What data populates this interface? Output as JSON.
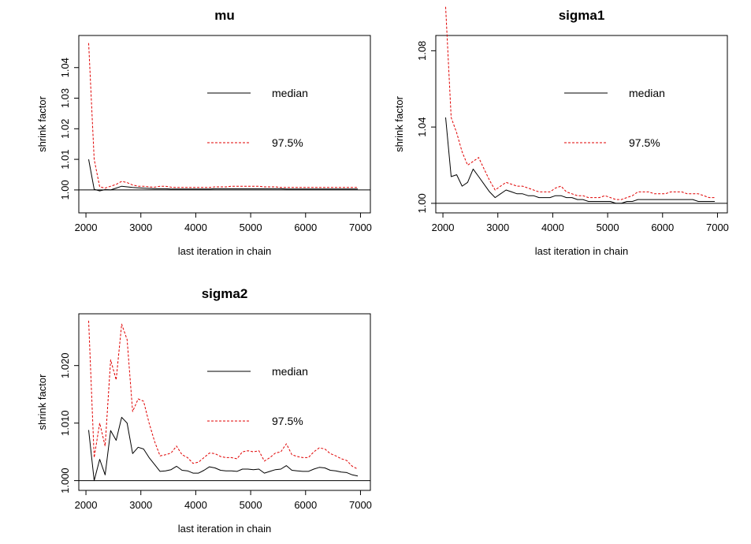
{
  "colors": {
    "median": "#000000",
    "q975": "#e00000",
    "axis": "#000000",
    "background": "#ffffff"
  },
  "chart_data": [
    {
      "type": "line",
      "title": "mu",
      "xlabel": "last iteration in chain",
      "ylabel": "shrink factor",
      "xlim": [
        1870,
        7180
      ],
      "ylim": [
        0.9925,
        1.0505
      ],
      "xticks": [
        2000,
        3000,
        4000,
        5000,
        6000,
        7000
      ],
      "xtick_labels": [
        "2000",
        "3000",
        "4000",
        "5000",
        "6000",
        "7000"
      ],
      "yticks": [
        1.0,
        1.01,
        1.02,
        1.03,
        1.04
      ],
      "ytick_labels": [
        "1.00",
        "1.01",
        "1.02",
        "1.03",
        "1.04"
      ],
      "hline": 1.0,
      "legend": {
        "position": "upper-right",
        "entries": [
          "median",
          "97.5%"
        ]
      },
      "x": [
        2050,
        2150,
        2250,
        2350,
        2450,
        2550,
        2650,
        2750,
        2850,
        2950,
        3050,
        3150,
        3250,
        3350,
        3450,
        3550,
        3650,
        3750,
        3850,
        3950,
        4050,
        4150,
        4250,
        4350,
        4450,
        4550,
        4650,
        4750,
        4850,
        4950,
        5050,
        5150,
        5250,
        5350,
        5450,
        5550,
        5650,
        5750,
        5850,
        5950,
        6050,
        6150,
        6250,
        6350,
        6450,
        6550,
        6650,
        6750,
        6850,
        6950
      ],
      "series": [
        {
          "name": "median",
          "values": [
            1.01,
            1.0002,
            0.9997,
            1.0001,
            1.0,
            1.0006,
            1.0012,
            1.001,
            1.0008,
            1.0007,
            1.0006,
            1.0005,
            1.0004,
            1.0004,
            1.0004,
            1.0003,
            1.0003,
            1.0003,
            1.0003,
            1.0003,
            1.0003,
            1.0003,
            1.0003,
            1.0004,
            1.0004,
            1.0004,
            1.0004,
            1.0004,
            1.0004,
            1.0004,
            1.0004,
            1.0004,
            1.0004,
            1.0004,
            1.0004,
            1.0004,
            1.0003,
            1.0003,
            1.0003,
            1.0003,
            1.0003,
            1.0003,
            1.0003,
            1.0003,
            1.0003,
            1.0003,
            1.0003,
            1.0003,
            1.0003,
            1.0003
          ]
        },
        {
          "name": "97.5%",
          "values": [
            1.048,
            1.01,
            1.001,
            1.0006,
            1.0012,
            1.0018,
            1.0028,
            1.0024,
            1.0016,
            1.0012,
            1.0012,
            1.001,
            1.0009,
            1.0012,
            1.0012,
            1.0009,
            1.0008,
            1.0008,
            1.0008,
            1.0008,
            1.0008,
            1.0008,
            1.0008,
            1.001,
            1.001,
            1.001,
            1.0012,
            1.0012,
            1.0012,
            1.0012,
            1.0012,
            1.0012,
            1.001,
            1.001,
            1.001,
            1.0008,
            1.0008,
            1.0008,
            1.0008,
            1.0008,
            1.0008,
            1.0008,
            1.0008,
            1.0008,
            1.0008,
            1.0008,
            1.0008,
            1.0008,
            1.0008,
            1.0008
          ]
        }
      ]
    },
    {
      "type": "line",
      "title": "sigma1",
      "xlabel": "last iteration in chain",
      "ylabel": "shrink factor",
      "xlim": [
        1870,
        7180
      ],
      "ylim": [
        0.995,
        1.088
      ],
      "xticks": [
        2000,
        3000,
        4000,
        5000,
        6000,
        7000
      ],
      "xtick_labels": [
        "2000",
        "3000",
        "4000",
        "5000",
        "6000",
        "7000"
      ],
      "yticks": [
        1.0,
        1.04,
        1.08
      ],
      "ytick_labels": [
        "1.00",
        "1.04",
        "1.08"
      ],
      "hline": 1.0,
      "legend": {
        "position": "upper-right",
        "entries": [
          "median",
          "97.5%"
        ]
      },
      "x": [
        2050,
        2150,
        2250,
        2350,
        2450,
        2550,
        2650,
        2750,
        2850,
        2950,
        3050,
        3150,
        3250,
        3350,
        3450,
        3550,
        3650,
        3750,
        3850,
        3950,
        4050,
        4150,
        4250,
        4350,
        4450,
        4550,
        4650,
        4750,
        4850,
        4950,
        5050,
        5150,
        5250,
        5350,
        5450,
        5550,
        5650,
        5750,
        5850,
        5950,
        6050,
        6150,
        6250,
        6350,
        6450,
        6550,
        6650,
        6750,
        6850,
        6950
      ],
      "series": [
        {
          "name": "median",
          "values": [
            1.045,
            1.014,
            1.015,
            1.009,
            1.011,
            1.018,
            1.014,
            1.01,
            1.006,
            1.003,
            1.005,
            1.007,
            1.006,
            1.005,
            1.005,
            1.004,
            1.004,
            1.003,
            1.003,
            1.003,
            1.004,
            1.004,
            1.003,
            1.003,
            1.002,
            1.002,
            1.001,
            1.001,
            1.001,
            1.001,
            1.001,
            1.0,
            1.0,
            1.001,
            1.001,
            1.002,
            1.002,
            1.002,
            1.002,
            1.002,
            1.002,
            1.002,
            1.002,
            1.002,
            1.002,
            1.002,
            1.001,
            1.001,
            1.001,
            1.001
          ]
        },
        {
          "name": "97.5%",
          "values": [
            1.103,
            1.045,
            1.037,
            1.027,
            1.02,
            1.022,
            1.024,
            1.018,
            1.012,
            1.007,
            1.009,
            1.011,
            1.01,
            1.009,
            1.009,
            1.008,
            1.007,
            1.006,
            1.006,
            1.006,
            1.008,
            1.009,
            1.006,
            1.005,
            1.004,
            1.004,
            1.003,
            1.003,
            1.003,
            1.004,
            1.003,
            1.002,
            1.002,
            1.003,
            1.004,
            1.006,
            1.006,
            1.006,
            1.005,
            1.005,
            1.005,
            1.006,
            1.006,
            1.006,
            1.005,
            1.005,
            1.005,
            1.004,
            1.003,
            1.003
          ]
        }
      ]
    },
    {
      "type": "line",
      "title": "sigma2",
      "xlabel": "last iteration in chain",
      "ylabel": "shrink factor",
      "xlim": [
        1870,
        7180
      ],
      "ylim": [
        0.9983,
        1.029
      ],
      "xticks": [
        2000,
        3000,
        4000,
        5000,
        6000,
        7000
      ],
      "xtick_labels": [
        "2000",
        "3000",
        "4000",
        "5000",
        "6000",
        "7000"
      ],
      "yticks": [
        1.0,
        1.01,
        1.02
      ],
      "ytick_labels": [
        "1.000",
        "1.010",
        "1.020"
      ],
      "hline": 1.0,
      "legend": {
        "position": "upper-right",
        "entries": [
          "median",
          "97.5%"
        ]
      },
      "x": [
        2050,
        2150,
        2250,
        2350,
        2450,
        2550,
        2650,
        2750,
        2850,
        2950,
        3050,
        3150,
        3250,
        3350,
        3450,
        3550,
        3650,
        3750,
        3850,
        3950,
        4050,
        4150,
        4250,
        4350,
        4450,
        4550,
        4650,
        4750,
        4850,
        4950,
        5050,
        5150,
        5250,
        5350,
        5450,
        5550,
        5650,
        5750,
        5850,
        5950,
        6050,
        6150,
        6250,
        6350,
        6450,
        6550,
        6650,
        6750,
        6850,
        6950
      ],
      "series": [
        {
          "name": "median",
          "values": [
            1.0088,
            1.0,
            1.0037,
            1.001,
            1.0087,
            1.007,
            1.011,
            1.01,
            1.0047,
            1.0058,
            1.0055,
            1.004,
            1.0028,
            1.0016,
            1.0017,
            1.0019,
            1.0025,
            1.0018,
            1.0017,
            1.0013,
            1.0013,
            1.0018,
            1.0024,
            1.0022,
            1.0018,
            1.0017,
            1.0017,
            1.0016,
            1.002,
            1.002,
            1.0019,
            1.002,
            1.0013,
            1.0016,
            1.0019,
            1.002,
            1.0026,
            1.0018,
            1.0017,
            1.0016,
            1.0016,
            1.002,
            1.0023,
            1.0022,
            1.0018,
            1.0017,
            1.0015,
            1.0014,
            1.001,
            1.0008
          ]
        },
        {
          "name": "97.5%",
          "values": [
            1.0278,
            1.004,
            1.01,
            1.006,
            1.021,
            1.0175,
            1.0272,
            1.0245,
            1.012,
            1.0142,
            1.0138,
            1.01,
            1.0068,
            1.0043,
            1.0045,
            1.0048,
            1.006,
            1.0045,
            1.004,
            1.003,
            1.0032,
            1.004,
            1.0048,
            1.0047,
            1.0042,
            1.004,
            1.004,
            1.0038,
            1.005,
            1.0052,
            1.005,
            1.0052,
            1.0034,
            1.004,
            1.0048,
            1.005,
            1.0064,
            1.0045,
            1.0042,
            1.004,
            1.004,
            1.005,
            1.0057,
            1.0055,
            1.0047,
            1.0043,
            1.0038,
            1.0035,
            1.0025,
            1.002
          ]
        }
      ]
    }
  ]
}
